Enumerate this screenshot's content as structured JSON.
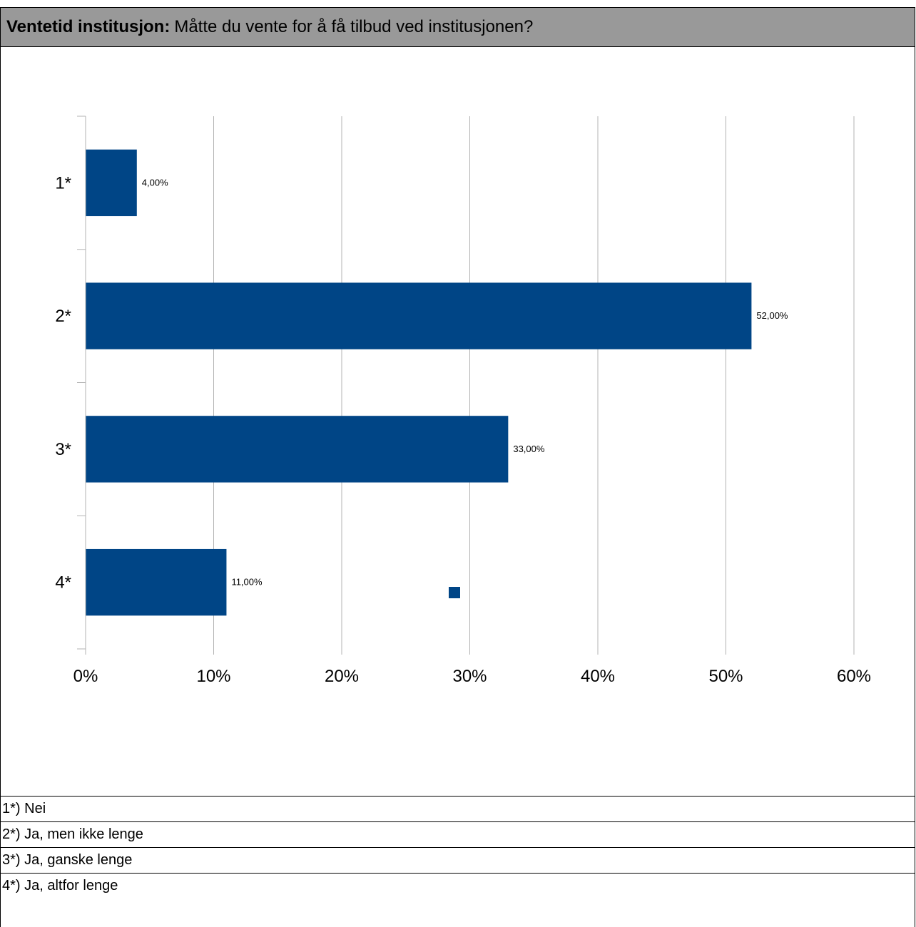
{
  "header": {
    "title_bold": "Ventetid institusjon:",
    "question": "Måtte du vente for å få tilbud ved institusjonen?"
  },
  "chart_data": {
    "type": "bar",
    "orientation": "horizontal",
    "categories": [
      "1*",
      "2*",
      "3*",
      "4*"
    ],
    "values": [
      4,
      52,
      33,
      11
    ],
    "data_labels": [
      "4,00%",
      "52,00%",
      "33,00%",
      "11,00%"
    ],
    "xlim": [
      0,
      60
    ],
    "xticks": [
      "0%",
      "10%",
      "20%",
      "30%",
      "40%",
      "50%",
      "60%"
    ],
    "grid": true,
    "legend": "bottom-center",
    "bar_color": "#004586"
  },
  "footnotes": [
    "1*) Nei",
    "2*) Ja, men ikke lenge",
    "3*) Ja, ganske lenge",
    "4*) Ja, altfor lenge"
  ]
}
